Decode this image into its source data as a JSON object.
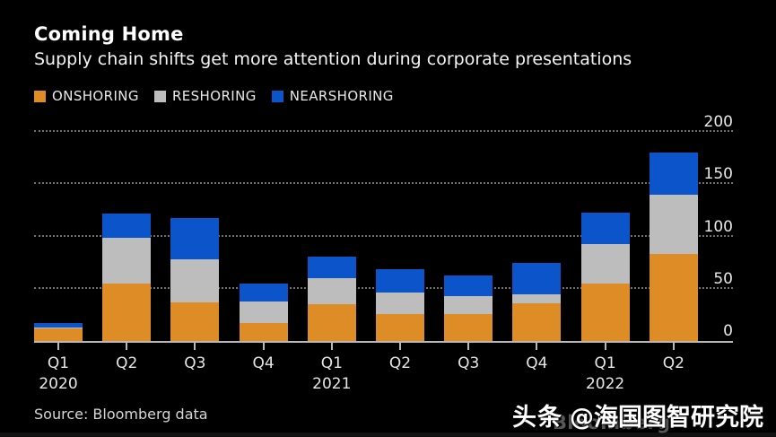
{
  "header": {
    "title": "Coming Home",
    "subtitle": "Supply chain shifts get more attention during corporate presentations"
  },
  "legend": [
    {
      "label": "ONSHORING",
      "color": "#DE8C26"
    },
    {
      "label": "RESHORING",
      "color": "#BDBDBD"
    },
    {
      "label": "NEARSHORING",
      "color": "#0B54C9"
    }
  ],
  "chart_data": {
    "type": "bar",
    "stacked": true,
    "title": "Coming Home",
    "subtitle": "Supply chain shifts get more attention during corporate presentations",
    "categories": [
      "Q1 2020",
      "Q2 2020",
      "Q3 2020",
      "Q4 2020",
      "Q1 2021",
      "Q2 2021",
      "Q3 2021",
      "Q4 2021",
      "Q1 2022",
      "Q2 2022"
    ],
    "x_tick_labels": [
      "Q1",
      "Q2",
      "Q3",
      "Q4",
      "Q1",
      "Q2",
      "Q3",
      "Q4",
      "Q1",
      "Q2"
    ],
    "x_year_labels": {
      "0": "2020",
      "4": "2021",
      "8": "2022"
    },
    "series": [
      {
        "name": "ONSHORING",
        "color": "#DE8C26",
        "values": [
          12,
          55,
          37,
          17,
          35,
          26,
          26,
          36,
          55,
          83
        ]
      },
      {
        "name": "RESHORING",
        "color": "#BDBDBD",
        "values": [
          1,
          44,
          41,
          21,
          25,
          20,
          17,
          9,
          38,
          57
        ]
      },
      {
        "name": "NEARSHORING",
        "color": "#0B54C9",
        "values": [
          4,
          23,
          40,
          17,
          21,
          23,
          20,
          30,
          30,
          40
        ]
      }
    ],
    "totals": [
      17,
      122,
      118,
      55,
      81,
      69,
      63,
      75,
      123,
      180
    ],
    "ylim": [
      0,
      200
    ],
    "yticks": [
      0,
      50,
      100,
      150,
      200
    ],
    "grid": "dotted-horizontal",
    "legend_position": "top-left",
    "ylabel": "",
    "xlabel": ""
  },
  "footer": {
    "source": "Source: Bloomberg data",
    "watermark": "Bloomberg",
    "overlay_brand": "头条",
    "overlay_handle": "@海国图智研究院"
  }
}
